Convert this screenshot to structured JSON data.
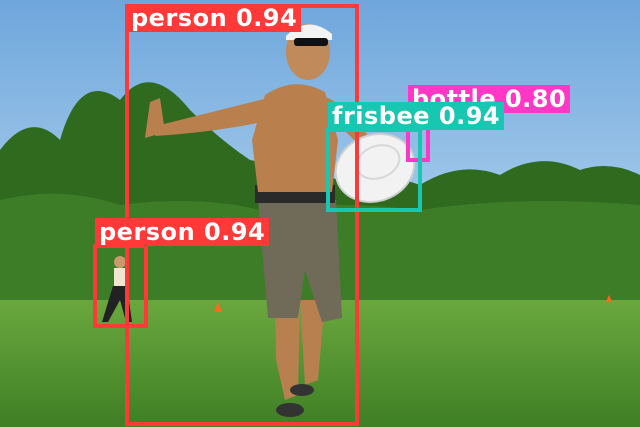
{
  "image": {
    "description_colors": {
      "sky_top": "#6ea6dc",
      "sky_bottom": "#b9d8f0",
      "trees": "#2f6a1f",
      "grass": "#5a9a34"
    }
  },
  "detections": [
    {
      "label": "person",
      "score": "0.94",
      "text": "person 0.94",
      "color": "#ff3838"
    },
    {
      "label": "person",
      "score": "0.94",
      "text": "person 0.94",
      "color": "#ff3838"
    },
    {
      "label": "frisbee",
      "score": "0.94",
      "text": "frisbee 0.94",
      "color": "#18c7b1"
    },
    {
      "label": "bottle",
      "score": "0.80",
      "text": "bottle 0.80",
      "color": "#ff37c7"
    }
  ]
}
